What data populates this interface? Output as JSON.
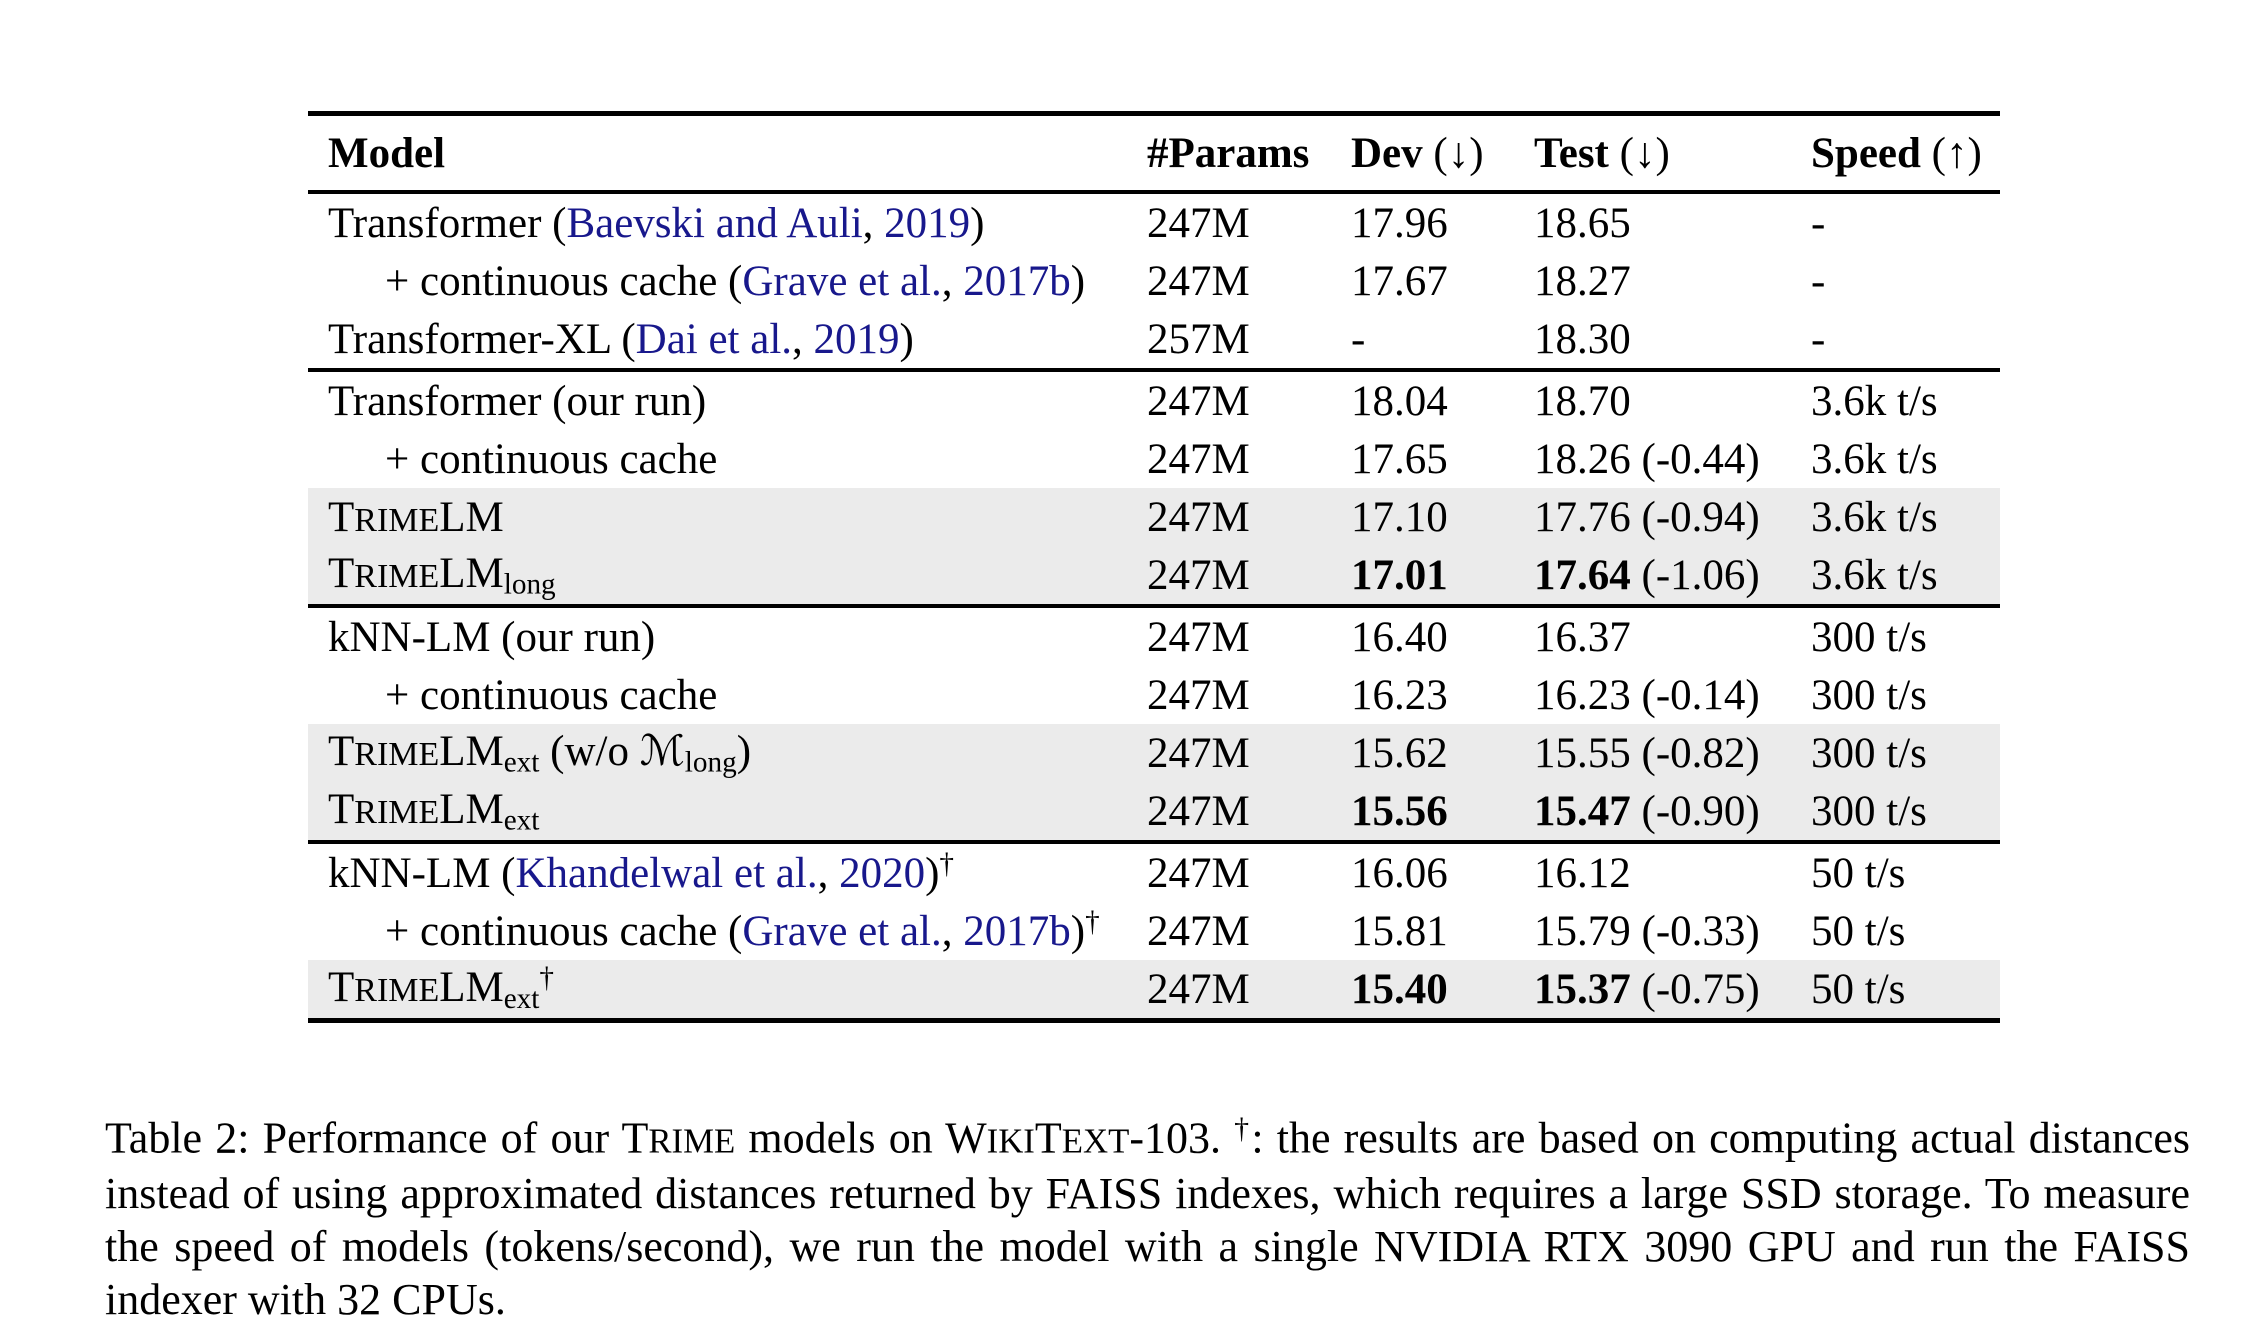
{
  "table": {
    "headers": [
      {
        "label": "Model",
        "suffix": ""
      },
      {
        "label": "#Params",
        "suffix": ""
      },
      {
        "label": "Dev",
        "suffix": " (↓)"
      },
      {
        "label": "Test",
        "suffix": " (↓)"
      },
      {
        "label": "Speed",
        "suffix": " (↑)"
      }
    ],
    "groups": [
      {
        "rows": [
          {
            "model": [
              {
                "t": "Transformer ("
              },
              {
                "t": "Baevski and Auli",
                "s": "cite"
              },
              {
                "t": ", "
              },
              {
                "t": "2019",
                "s": "cite"
              },
              {
                "t": ")"
              }
            ],
            "indent": false,
            "shaded": false,
            "params": "247M",
            "dev": [
              {
                "t": "17.96"
              }
            ],
            "test": [
              {
                "t": "18.65"
              }
            ],
            "speed": "-"
          },
          {
            "model": [
              {
                "t": "+ continuous cache ("
              },
              {
                "t": "Grave et al.",
                "s": "cite"
              },
              {
                "t": ", "
              },
              {
                "t": "2017b",
                "s": "cite"
              },
              {
                "t": ")"
              }
            ],
            "indent": true,
            "shaded": false,
            "params": "247M",
            "dev": [
              {
                "t": "17.67"
              }
            ],
            "test": [
              {
                "t": "18.27"
              }
            ],
            "speed": "-"
          },
          {
            "model": [
              {
                "t": "Transformer-XL ("
              },
              {
                "t": "Dai et al.",
                "s": "cite"
              },
              {
                "t": ", "
              },
              {
                "t": "2019",
                "s": "cite"
              },
              {
                "t": ")"
              }
            ],
            "indent": false,
            "shaded": false,
            "params": "257M",
            "dev": [
              {
                "t": "-"
              }
            ],
            "test": [
              {
                "t": "18.30"
              }
            ],
            "speed": "-"
          }
        ]
      },
      {
        "rows": [
          {
            "model": [
              {
                "t": "Transformer (our run)"
              }
            ],
            "indent": false,
            "shaded": false,
            "params": "247M",
            "dev": [
              {
                "t": "18.04"
              }
            ],
            "test": [
              {
                "t": "18.70"
              }
            ],
            "speed": "3.6k t/s"
          },
          {
            "model": [
              {
                "t": "+ continuous cache"
              }
            ],
            "indent": true,
            "shaded": false,
            "params": "247M",
            "dev": [
              {
                "t": "17.65"
              }
            ],
            "test": [
              {
                "t": "18.26 (-0.44)"
              }
            ],
            "speed": "3.6k t/s"
          },
          {
            "model": [
              {
                "t": "T"
              },
              {
                "t": "RIME",
                "s": "sc"
              },
              {
                "t": "LM"
              }
            ],
            "indent": false,
            "shaded": true,
            "params": "247M",
            "dev": [
              {
                "t": "17.10"
              }
            ],
            "test": [
              {
                "t": "17.76 (-0.94)"
              }
            ],
            "speed": "3.6k t/s"
          },
          {
            "model": [
              {
                "t": "T"
              },
              {
                "t": "RIME",
                "s": "sc"
              },
              {
                "t": "LM"
              },
              {
                "t": "long",
                "s": "sub"
              }
            ],
            "indent": false,
            "shaded": true,
            "params": "247M",
            "dev": [
              {
                "t": "17.01",
                "s": "b"
              }
            ],
            "test": [
              {
                "t": "17.64",
                "s": "b"
              },
              {
                "t": " (-1.06)"
              }
            ],
            "speed": "3.6k t/s"
          }
        ]
      },
      {
        "rows": [
          {
            "model": [
              {
                "t": "kNN-LM (our run)"
              }
            ],
            "indent": false,
            "shaded": false,
            "params": "247M",
            "dev": [
              {
                "t": "16.40"
              }
            ],
            "test": [
              {
                "t": "16.37"
              }
            ],
            "speed": "300 t/s"
          },
          {
            "model": [
              {
                "t": "+ continuous cache"
              }
            ],
            "indent": true,
            "shaded": false,
            "params": "247M",
            "dev": [
              {
                "t": "16.23"
              }
            ],
            "test": [
              {
                "t": "16.23 (-0.14)"
              }
            ],
            "speed": "300 t/s"
          },
          {
            "model": [
              {
                "t": "T"
              },
              {
                "t": "RIME",
                "s": "sc"
              },
              {
                "t": "LM"
              },
              {
                "t": "ext",
                "s": "sub"
              },
              {
                "t": " (w/o "
              },
              {
                "t": "ℳ",
                "s": "cal"
              },
              {
                "t": "long",
                "s": "sub"
              },
              {
                "t": ")"
              }
            ],
            "indent": false,
            "shaded": true,
            "params": "247M",
            "dev": [
              {
                "t": "15.62"
              }
            ],
            "test": [
              {
                "t": "15.55 (-0.82)"
              }
            ],
            "speed": "300 t/s"
          },
          {
            "model": [
              {
                "t": "T"
              },
              {
                "t": "RIME",
                "s": "sc"
              },
              {
                "t": "LM"
              },
              {
                "t": "ext",
                "s": "sub"
              }
            ],
            "indent": false,
            "shaded": true,
            "params": "247M",
            "dev": [
              {
                "t": "15.56",
                "s": "b"
              }
            ],
            "test": [
              {
                "t": "15.47",
                "s": "b"
              },
              {
                "t": " (-0.90)"
              }
            ],
            "speed": "300 t/s"
          }
        ]
      },
      {
        "rows": [
          {
            "model": [
              {
                "t": "kNN-LM ("
              },
              {
                "t": "Khandelwal et al.",
                "s": "cite"
              },
              {
                "t": ", "
              },
              {
                "t": "2020",
                "s": "cite"
              },
              {
                "t": ")"
              },
              {
                "t": "†",
                "s": "sup"
              }
            ],
            "indent": false,
            "shaded": false,
            "params": "247M",
            "dev": [
              {
                "t": "16.06"
              }
            ],
            "test": [
              {
                "t": "16.12"
              }
            ],
            "speed": "50 t/s"
          },
          {
            "model": [
              {
                "t": "+ continuous cache ("
              },
              {
                "t": "Grave et al.",
                "s": "cite"
              },
              {
                "t": ", "
              },
              {
                "t": "2017b",
                "s": "cite"
              },
              {
                "t": ")"
              },
              {
                "t": "†",
                "s": "sup"
              }
            ],
            "indent": true,
            "shaded": false,
            "params": "247M",
            "dev": [
              {
                "t": "15.81"
              }
            ],
            "test": [
              {
                "t": "15.79 (-0.33)"
              }
            ],
            "speed": "50 t/s"
          },
          {
            "model": [
              {
                "t": "T"
              },
              {
                "t": "RIME",
                "s": "sc"
              },
              {
                "t": "LM"
              },
              {
                "t": "ext",
                "s": "sub"
              },
              {
                "t": "†",
                "s": "sup"
              }
            ],
            "indent": false,
            "shaded": true,
            "params": "247M",
            "dev": [
              {
                "t": "15.40",
                "s": "b"
              }
            ],
            "test": [
              {
                "t": "15.37",
                "s": "b"
              },
              {
                "t": " (-0.75)"
              }
            ],
            "speed": "50 t/s"
          }
        ]
      }
    ]
  },
  "caption": {
    "segments": [
      {
        "t": "Table 2: Performance of our "
      },
      {
        "t": "T"
      },
      {
        "t": "RIME",
        "s": "sc"
      },
      {
        "t": " models on "
      },
      {
        "t": "W"
      },
      {
        "t": "IKI",
        "s": "sc"
      },
      {
        "t": "T"
      },
      {
        "t": "EXT",
        "s": "sc"
      },
      {
        "t": "-103. "
      },
      {
        "t": "†",
        "s": "sup"
      },
      {
        "t": ": the results are based on computing actual distances instead of using approximated distances returned by FAISS indexes, which requires a large SSD storage. To measure the speed of models (tokens/second), we run the model with a single NVIDIA RTX 3090 GPU and run the FAISS indexer with 32 CPUs."
      }
    ]
  }
}
